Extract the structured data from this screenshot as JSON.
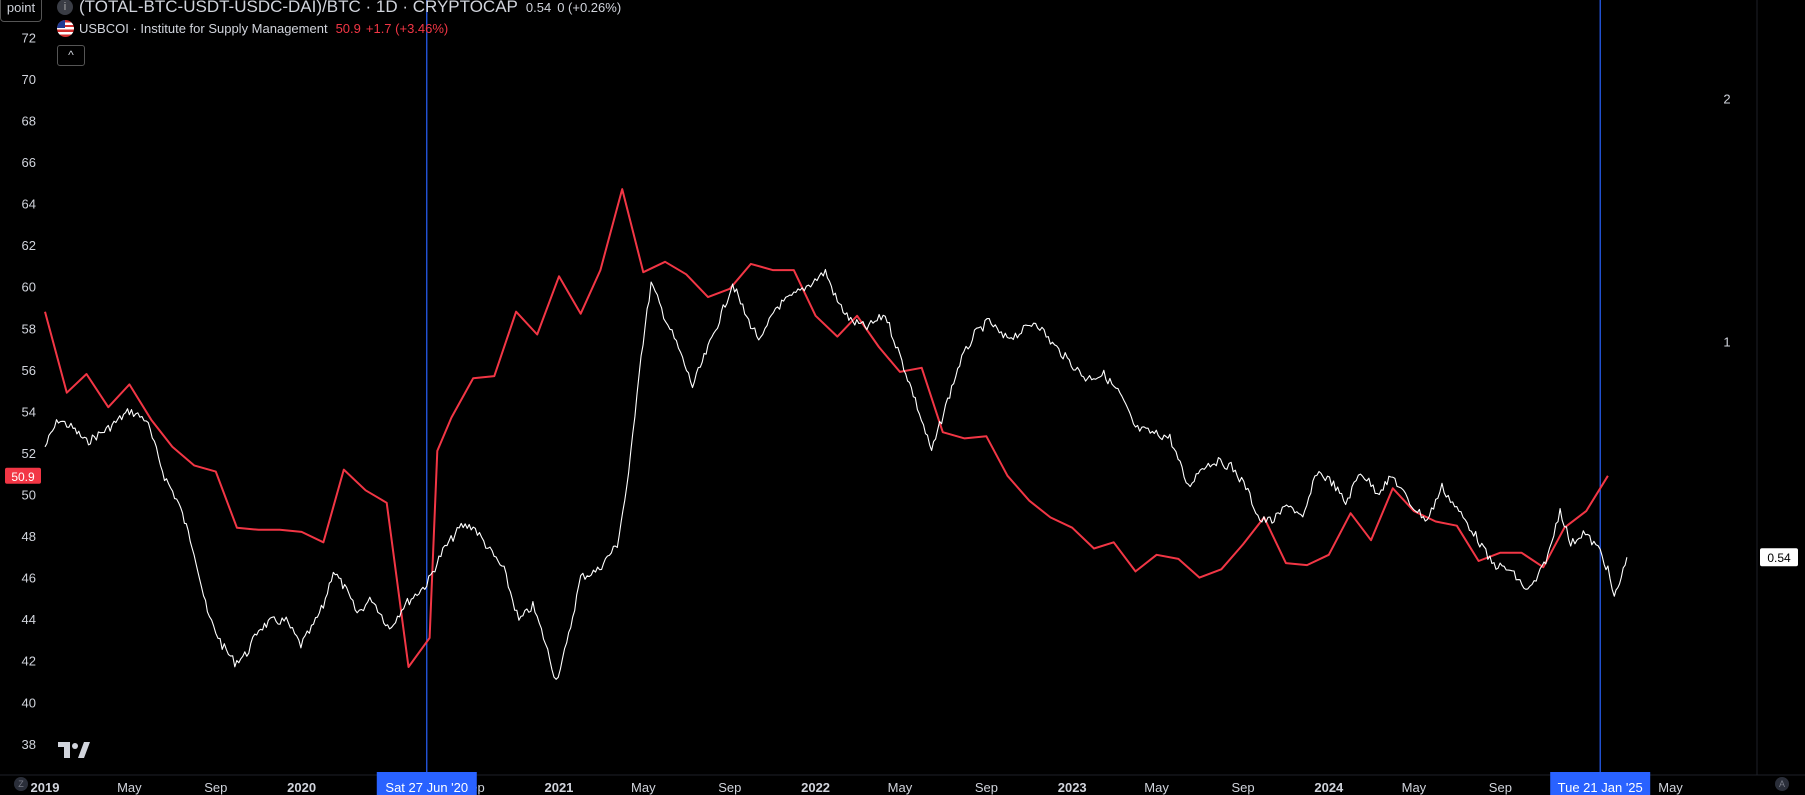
{
  "header": {
    "point_label": "point",
    "symbol_title": "(TOTAL-BTC-USDT-USDC-DAI)/BTC · 1D · CRYPTOCAP",
    "symbol_value": "0.54",
    "symbol_change": "0 (+0.26%)",
    "indicator_title": "USBCOI · Institute for Supply Management",
    "indicator_value": "50.9",
    "indicator_change": "+1.7 (+3.46%)",
    "collapse_label": "^"
  },
  "colors": {
    "background": "#000000",
    "price_line": "#ffffff",
    "indicator_line": "#f23645",
    "crosshair": "#2962ff",
    "text": "#d1d4dc"
  },
  "corners": {
    "left": "Z",
    "right": "A"
  },
  "chart_data": {
    "type": "line",
    "x_range": [
      "2019-01-01",
      "2025-09-01"
    ],
    "left_axis": {
      "ticks": [
        38,
        40,
        42,
        44,
        46,
        48,
        50,
        52,
        54,
        56,
        58,
        60,
        62,
        64,
        66,
        68,
        70,
        72
      ],
      "range": [
        36.5,
        73.8
      ]
    },
    "right_axis": {
      "scale": "log",
      "ticks": [
        1,
        2
      ],
      "range": [
        0.29,
        2.65
      ]
    },
    "x_tick_labels": [
      {
        "date": "2019-01-01",
        "label": "2019",
        "bold": true
      },
      {
        "date": "2019-05-01",
        "label": "May",
        "bold": false
      },
      {
        "date": "2019-09-01",
        "label": "Sep",
        "bold": false
      },
      {
        "date": "2020-01-01",
        "label": "2020",
        "bold": true
      },
      {
        "date": "2020-09-01",
        "label": "Sep",
        "bold": false
      },
      {
        "date": "2021-01-01",
        "label": "2021",
        "bold": true
      },
      {
        "date": "2021-05-01",
        "label": "May",
        "bold": false
      },
      {
        "date": "2021-09-01",
        "label": "Sep",
        "bold": false
      },
      {
        "date": "2022-01-01",
        "label": "2022",
        "bold": true
      },
      {
        "date": "2022-05-01",
        "label": "May",
        "bold": false
      },
      {
        "date": "2022-09-01",
        "label": "Sep",
        "bold": false
      },
      {
        "date": "2023-01-01",
        "label": "2023",
        "bold": true
      },
      {
        "date": "2023-05-01",
        "label": "May",
        "bold": false
      },
      {
        "date": "2023-09-01",
        "label": "Sep",
        "bold": false
      },
      {
        "date": "2024-01-01",
        "label": "2024",
        "bold": true
      },
      {
        "date": "2024-05-01",
        "label": "May",
        "bold": false
      },
      {
        "date": "2024-09-01",
        "label": "Sep",
        "bold": false
      },
      {
        "date": "2025-05-01",
        "label": "May",
        "bold": false
      }
    ],
    "markers": [
      {
        "date": "2020-06-27",
        "label": "Sat 27 Jun '20"
      },
      {
        "date": "2025-01-21",
        "label": "Tue 21 Jan '25"
      }
    ],
    "last_values": {
      "indicator": "50.9",
      "price": "0.54"
    },
    "series": [
      {
        "name": "USBCOI",
        "axis": "left",
        "points": [
          [
            "2019-01-01",
            58.8
          ],
          [
            "2019-02-01",
            54.9
          ],
          [
            "2019-03-01",
            55.8
          ],
          [
            "2019-04-01",
            54.2
          ],
          [
            "2019-05-01",
            55.3
          ],
          [
            "2019-06-01",
            53.6
          ],
          [
            "2019-07-01",
            52.3
          ],
          [
            "2019-08-01",
            51.4
          ],
          [
            "2019-09-01",
            51.1
          ],
          [
            "2019-10-01",
            48.4
          ],
          [
            "2019-11-01",
            48.3
          ],
          [
            "2019-12-01",
            48.3
          ],
          [
            "2020-01-01",
            48.2
          ],
          [
            "2020-02-01",
            47.7
          ],
          [
            "2020-03-01",
            51.2
          ],
          [
            "2020-04-01",
            50.2
          ],
          [
            "2020-05-01",
            49.6
          ],
          [
            "2020-06-01",
            41.7
          ],
          [
            "2020-07-01",
            43.1
          ],
          [
            "2020-07-12",
            52.1
          ],
          [
            "2020-08-01",
            53.7
          ],
          [
            "2020-09-01",
            55.6
          ],
          [
            "2020-10-01",
            55.7
          ],
          [
            "2020-11-01",
            58.8
          ],
          [
            "2020-12-01",
            57.7
          ],
          [
            "2021-01-01",
            60.5
          ],
          [
            "2021-02-01",
            58.7
          ],
          [
            "2021-03-01",
            60.8
          ],
          [
            "2021-04-01",
            64.7
          ],
          [
            "2021-05-01",
            60.7
          ],
          [
            "2021-06-01",
            61.2
          ],
          [
            "2021-07-01",
            60.6
          ],
          [
            "2021-08-01",
            59.5
          ],
          [
            "2021-09-01",
            59.9
          ],
          [
            "2021-10-01",
            61.1
          ],
          [
            "2021-11-01",
            60.8
          ],
          [
            "2021-12-01",
            60.8
          ],
          [
            "2022-01-01",
            58.6
          ],
          [
            "2022-02-01",
            57.6
          ],
          [
            "2022-03-01",
            58.6
          ],
          [
            "2022-04-01",
            57.1
          ],
          [
            "2022-05-01",
            55.9
          ],
          [
            "2022-06-01",
            56.1
          ],
          [
            "2022-07-01",
            53.0
          ],
          [
            "2022-08-01",
            52.7
          ],
          [
            "2022-09-01",
            52.8
          ],
          [
            "2022-10-01",
            50.9
          ],
          [
            "2022-11-01",
            49.7
          ],
          [
            "2022-12-01",
            48.9
          ],
          [
            "2023-01-01",
            48.4
          ],
          [
            "2023-02-01",
            47.4
          ],
          [
            "2023-03-01",
            47.7
          ],
          [
            "2023-04-01",
            46.3
          ],
          [
            "2023-05-01",
            47.1
          ],
          [
            "2023-06-01",
            46.9
          ],
          [
            "2023-07-01",
            46.0
          ],
          [
            "2023-08-01",
            46.4
          ],
          [
            "2023-09-01",
            47.6
          ],
          [
            "2023-10-01",
            48.9
          ],
          [
            "2023-11-01",
            46.7
          ],
          [
            "2023-12-01",
            46.6
          ],
          [
            "2024-01-01",
            47.1
          ],
          [
            "2024-02-01",
            49.1
          ],
          [
            "2024-03-01",
            47.8
          ],
          [
            "2024-04-01",
            50.3
          ],
          [
            "2024-05-01",
            49.2
          ],
          [
            "2024-06-01",
            48.7
          ],
          [
            "2024-07-01",
            48.5
          ],
          [
            "2024-08-01",
            46.8
          ],
          [
            "2024-09-01",
            47.2
          ],
          [
            "2024-10-01",
            47.2
          ],
          [
            "2024-11-01",
            46.5
          ],
          [
            "2024-12-01",
            48.4
          ],
          [
            "2025-01-01",
            49.2
          ],
          [
            "2025-02-01",
            50.9
          ]
        ]
      },
      {
        "name": "(TOTAL-BTC-USDT-USDC-DAI)/BTC",
        "axis": "right",
        "points": [
          [
            "2019-01-01",
            0.74
          ],
          [
            "2019-01-20",
            0.8
          ],
          [
            "2019-02-10",
            0.78
          ],
          [
            "2019-03-01",
            0.75
          ],
          [
            "2019-04-01",
            0.78
          ],
          [
            "2019-05-01",
            0.82
          ],
          [
            "2019-05-25",
            0.8
          ],
          [
            "2019-06-20",
            0.68
          ],
          [
            "2019-07-10",
            0.63
          ],
          [
            "2019-08-01",
            0.55
          ],
          [
            "2019-08-20",
            0.46
          ],
          [
            "2019-09-10",
            0.42
          ],
          [
            "2019-09-28",
            0.4
          ],
          [
            "2019-10-15",
            0.41
          ],
          [
            "2019-11-01",
            0.44
          ],
          [
            "2019-11-20",
            0.45
          ],
          [
            "2019-12-10",
            0.45
          ],
          [
            "2019-12-31",
            0.42
          ],
          [
            "2020-01-15",
            0.44
          ],
          [
            "2020-02-01",
            0.47
          ],
          [
            "2020-02-15",
            0.52
          ],
          [
            "2020-03-05",
            0.49
          ],
          [
            "2020-03-20",
            0.46
          ],
          [
            "2020-04-10",
            0.48
          ],
          [
            "2020-05-05",
            0.44
          ],
          [
            "2020-05-25",
            0.47
          ],
          [
            "2020-06-27",
            0.5
          ],
          [
            "2020-07-20",
            0.55
          ],
          [
            "2020-08-15",
            0.59
          ],
          [
            "2020-09-01",
            0.59
          ],
          [
            "2020-09-25",
            0.55
          ],
          [
            "2020-10-15",
            0.52
          ],
          [
            "2020-11-05",
            0.45
          ],
          [
            "2020-11-25",
            0.47
          ],
          [
            "2020-12-10",
            0.43
          ],
          [
            "2020-12-28",
            0.38
          ],
          [
            "2021-01-12",
            0.42
          ],
          [
            "2021-02-01",
            0.51
          ],
          [
            "2021-02-25",
            0.52
          ],
          [
            "2021-03-25",
            0.56
          ],
          [
            "2021-04-10",
            0.68
          ],
          [
            "2021-04-25",
            0.92
          ],
          [
            "2021-05-12",
            1.18
          ],
          [
            "2021-05-30",
            1.08
          ],
          [
            "2021-06-20",
            0.98
          ],
          [
            "2021-07-10",
            0.88
          ],
          [
            "2021-08-01",
            0.98
          ],
          [
            "2021-08-20",
            1.08
          ],
          [
            "2021-09-05",
            1.18
          ],
          [
            "2021-09-25",
            1.07
          ],
          [
            "2021-10-15",
            1.0
          ],
          [
            "2021-11-05",
            1.1
          ],
          [
            "2021-12-01",
            1.14
          ],
          [
            "2021-12-25",
            1.18
          ],
          [
            "2022-01-15",
            1.22
          ],
          [
            "2022-02-01",
            1.12
          ],
          [
            "2022-02-20",
            1.06
          ],
          [
            "2022-03-15",
            1.04
          ],
          [
            "2022-04-10",
            1.08
          ],
          [
            "2022-05-01",
            0.96
          ],
          [
            "2022-05-20",
            0.86
          ],
          [
            "2022-06-15",
            0.73
          ],
          [
            "2022-07-05",
            0.83
          ],
          [
            "2022-07-25",
            0.94
          ],
          [
            "2022-08-15",
            1.02
          ],
          [
            "2022-09-05",
            1.06
          ],
          [
            "2022-09-25",
            1.01
          ],
          [
            "2022-10-15",
            1.02
          ],
          [
            "2022-11-10",
            1.06
          ],
          [
            "2022-12-01",
            1.0
          ],
          [
            "2022-12-25",
            0.95
          ],
          [
            "2023-01-20",
            0.9
          ],
          [
            "2023-02-15",
            0.91
          ],
          [
            "2023-03-10",
            0.86
          ],
          [
            "2023-04-01",
            0.78
          ],
          [
            "2023-04-25",
            0.77
          ],
          [
            "2023-05-20",
            0.76
          ],
          [
            "2023-06-15",
            0.66
          ],
          [
            "2023-07-05",
            0.7
          ],
          [
            "2023-07-25",
            0.71
          ],
          [
            "2023-08-15",
            0.7
          ],
          [
            "2023-09-05",
            0.66
          ],
          [
            "2023-09-25",
            0.6
          ],
          [
            "2023-10-15",
            0.6
          ],
          [
            "2023-11-05",
            0.63
          ],
          [
            "2023-11-25",
            0.6
          ],
          [
            "2023-12-15",
            0.69
          ],
          [
            "2024-01-05",
            0.67
          ],
          [
            "2024-01-25",
            0.63
          ],
          [
            "2024-02-15",
            0.69
          ],
          [
            "2024-03-10",
            0.65
          ],
          [
            "2024-04-01",
            0.68
          ],
          [
            "2024-04-25",
            0.63
          ],
          [
            "2024-05-20",
            0.6
          ],
          [
            "2024-06-10",
            0.66
          ],
          [
            "2024-07-01",
            0.62
          ],
          [
            "2024-07-25",
            0.58
          ],
          [
            "2024-08-20",
            0.53
          ],
          [
            "2024-09-15",
            0.52
          ],
          [
            "2024-10-10",
            0.49
          ],
          [
            "2024-10-25",
            0.51
          ],
          [
            "2024-11-10",
            0.55
          ],
          [
            "2024-11-25",
            0.62
          ],
          [
            "2024-12-10",
            0.56
          ],
          [
            "2024-12-28",
            0.58
          ],
          [
            "2025-01-21",
            0.55
          ],
          [
            "2025-02-01",
            0.52
          ],
          [
            "2025-02-10",
            0.48
          ],
          [
            "2025-02-20",
            0.51
          ],
          [
            "2025-02-28",
            0.54
          ]
        ]
      }
    ]
  }
}
